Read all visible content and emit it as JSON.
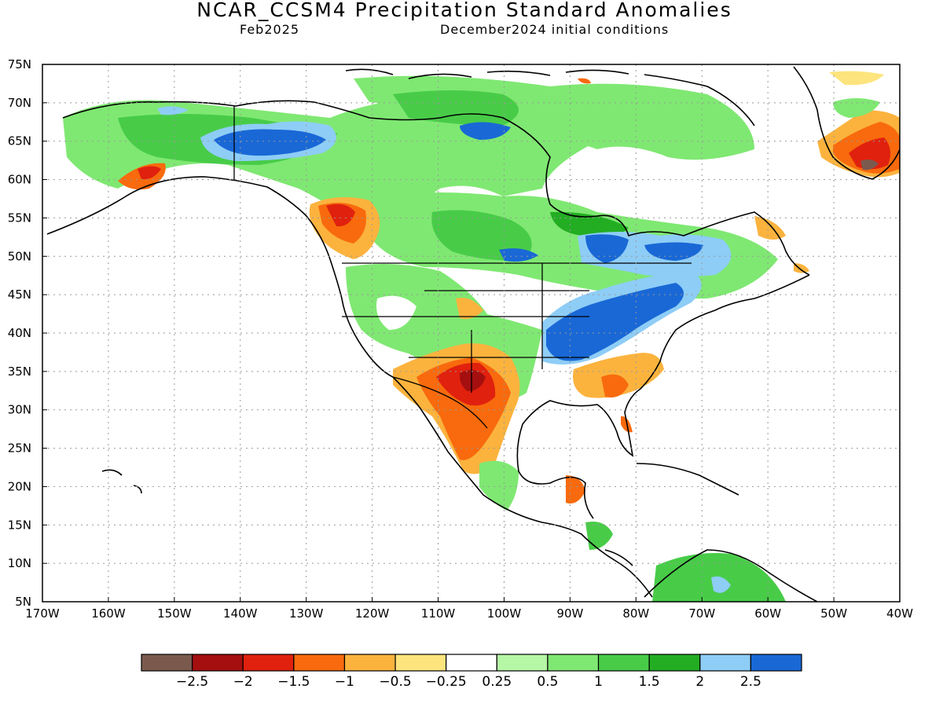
{
  "title": "NCAR_CCSM4 Precipitation Standard Anomalies",
  "subtitle_left": "Feb2025",
  "subtitle_right": "December2024 initial conditions",
  "axes": {
    "lon_labels": [
      "170W",
      "160W",
      "150W",
      "140W",
      "130W",
      "120W",
      "110W",
      "100W",
      "90W",
      "80W",
      "70W",
      "60W",
      "50W",
      "40W"
    ],
    "lat_labels": [
      "75N",
      "70N",
      "65N",
      "60N",
      "55N",
      "50N",
      "45N",
      "40N",
      "35N",
      "30N",
      "25N",
      "20N",
      "15N",
      "10N",
      "5N"
    ]
  },
  "colorbar": {
    "colors": [
      "#7b5a4e",
      "#a50f0f",
      "#e0210e",
      "#f86a0d",
      "#fbb33e",
      "#fde47c",
      "#ffffff",
      "#b6f7a5",
      "#7fe872",
      "#48cc48",
      "#23ad23",
      "#8ecdf6",
      "#1968d6"
    ],
    "labels": [
      "−2.5",
      "−2",
      "−1.5",
      "−1",
      "−0.5",
      "−0.25",
      "0.25",
      "0.5",
      "1",
      "1.5",
      "2",
      "2.5"
    ]
  }
}
